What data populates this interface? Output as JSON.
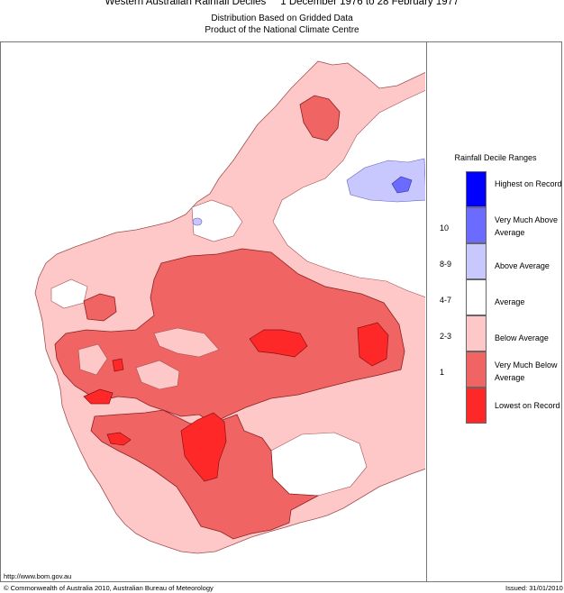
{
  "header": {
    "title": "Western Australian Rainfall Deciles     1 December 1976 to 28 February 1977",
    "subtitle1": "Distribution Based on Gridded Data",
    "subtitle2": "Product of the National Climate Centre"
  },
  "legend": {
    "title": "Rainfall Decile Ranges",
    "items": [
      {
        "label": "Highest on Record",
        "code": "",
        "color": "#0000ff"
      },
      {
        "label": "Very Much Above Average",
        "code": "10",
        "color": "#6b6bff"
      },
      {
        "label": "Above Average",
        "code": "8-9",
        "color": "#c8c8ff"
      },
      {
        "label": "Average",
        "code": "4-7",
        "color": "#ffffff"
      },
      {
        "label": "Below Average",
        "code": "2-3",
        "color": "#ffc8c8"
      },
      {
        "label": "Very Much Below Average",
        "code": "1",
        "color": "#f06464"
      },
      {
        "label": "Lowest on Record",
        "code": "",
        "color": "#ff2828"
      }
    ]
  },
  "footer": {
    "url": "http://www.bom.gov.au",
    "copyright": "© Commonwealth of Australia 2010, Australian Bureau of Meteorology",
    "issued": "Issued: 31/01/2010"
  }
}
